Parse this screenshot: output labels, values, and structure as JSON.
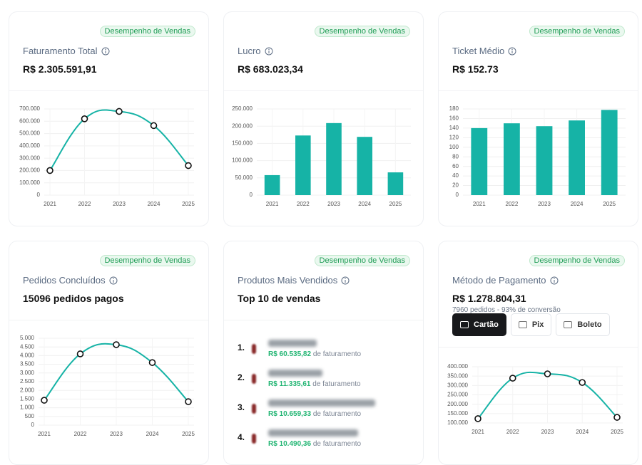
{
  "cards": [
    {
      "badge": "Desempenho de Vendas",
      "title": "Faturamento Total",
      "value": "R$ 2.305.591,91",
      "chart": {
        "type": "line",
        "color": "#16b3a6",
        "categories": [
          "2021",
          "2022",
          "2023",
          "2024",
          "2025"
        ],
        "values": [
          200000,
          620000,
          680000,
          565000,
          240000
        ],
        "ylim": [
          0,
          700000
        ],
        "yticks": [
          0,
          {
            "value": 100000,
            "label": "100.000"
          },
          {
            "value": 200000,
            "label": "200.000"
          },
          {
            "value": 300000,
            "label": "300.000"
          },
          {
            "value": 400000,
            "label": "400.000"
          },
          {
            "value": 500000,
            "label": "500.000"
          },
          {
            "value": 600000,
            "label": "600.000"
          },
          {
            "value": 700000,
            "label": "700.000"
          }
        ]
      }
    },
    {
      "badge": "Desempenho de Vendas",
      "title": "Lucro",
      "value": "R$ 683.023,34",
      "chart": {
        "type": "bar",
        "color": "#16b3a6",
        "categories": [
          "2021",
          "2022",
          "2023",
          "2024",
          "2025"
        ],
        "values": [
          58000,
          173000,
          209000,
          169000,
          66000
        ],
        "ylim": [
          0,
          250000
        ],
        "yticks": [
          0,
          {
            "value": 50000,
            "label": "50.000"
          },
          {
            "value": 100000,
            "label": "100.000"
          },
          {
            "value": 150000,
            "label": "150.000"
          },
          {
            "value": 200000,
            "label": "200.000"
          },
          {
            "value": 250000,
            "label": "250.000"
          }
        ]
      }
    },
    {
      "badge": "Desempenho de Vendas",
      "title": "Ticket Médio",
      "value": "R$ 152.73",
      "chart": {
        "type": "bar",
        "color": "#16b3a6",
        "categories": [
          "2021",
          "2022",
          "2023",
          "2024",
          "2025"
        ],
        "values": [
          140,
          150,
          144,
          156,
          178
        ],
        "ylim": [
          0,
          180
        ],
        "yticks": [
          0,
          20,
          40,
          60,
          80,
          100,
          120,
          140,
          160,
          180
        ]
      }
    },
    {
      "badge": "Desempenho de Vendas",
      "title": "Pedidos Concluídos",
      "value": "15096 pedidos pagos",
      "chart": {
        "type": "line",
        "color": "#16b3a6",
        "categories": [
          "2021",
          "2022",
          "2023",
          "2024",
          "2025"
        ],
        "values": [
          1430,
          4100,
          4630,
          3600,
          1350
        ],
        "ylim": [
          0,
          5000
        ],
        "yticks": [
          0,
          500,
          {
            "value": 1000,
            "label": "1.000"
          },
          {
            "value": 1500,
            "label": "1.500"
          },
          {
            "value": 2000,
            "label": "2.000"
          },
          {
            "value": 2500,
            "label": "2.500"
          },
          {
            "value": 3000,
            "label": "3.000"
          },
          {
            "value": 3500,
            "label": "3.500"
          },
          {
            "value": 4000,
            "label": "4.000"
          },
          {
            "value": 4500,
            "label": "4.500"
          },
          {
            "value": 5000,
            "label": "5.000"
          }
        ]
      }
    },
    {
      "badge": "Desempenho de Vendas",
      "title": "Produtos Mais Vendidos",
      "value": "Top 10 de vendas",
      "products": [
        {
          "rank": "1.",
          "revenue": "R$ 60.535,82",
          "suffix": "de faturamento"
        },
        {
          "rank": "2.",
          "revenue": "R$ 11.335,61",
          "suffix": "de faturamento"
        },
        {
          "rank": "3.",
          "revenue": "R$ 10.659,33",
          "suffix": "de faturamento"
        },
        {
          "rank": "4.",
          "revenue": "R$ 10.490,36",
          "suffix": "de faturamento"
        }
      ]
    },
    {
      "badge": "Desempenho de Vendas",
      "title": "Método de Pagamento",
      "value": "R$ 1.278.804,31",
      "subtitle": "7960 pedidos - 93% de conversão",
      "buttons": [
        "Cartão",
        "Pix",
        "Boleto"
      ],
      "chart": {
        "type": "line",
        "color": "#16b3a6",
        "categories": [
          "2021",
          "2022",
          "2023",
          "2024",
          "2025"
        ],
        "values": [
          123000,
          339000,
          362000,
          316000,
          130000
        ],
        "ylim": [
          100000,
          400000
        ],
        "yticks": [
          {
            "value": 100000,
            "label": "100.000"
          },
          {
            "value": 150000,
            "label": "150.000"
          },
          {
            "value": 200000,
            "label": "200.000"
          },
          {
            "value": 250000,
            "label": "250.000"
          },
          {
            "value": 300000,
            "label": "300.000"
          },
          {
            "value": 350000,
            "label": "350.000"
          },
          {
            "value": 400000,
            "label": "400.000"
          }
        ]
      }
    }
  ]
}
